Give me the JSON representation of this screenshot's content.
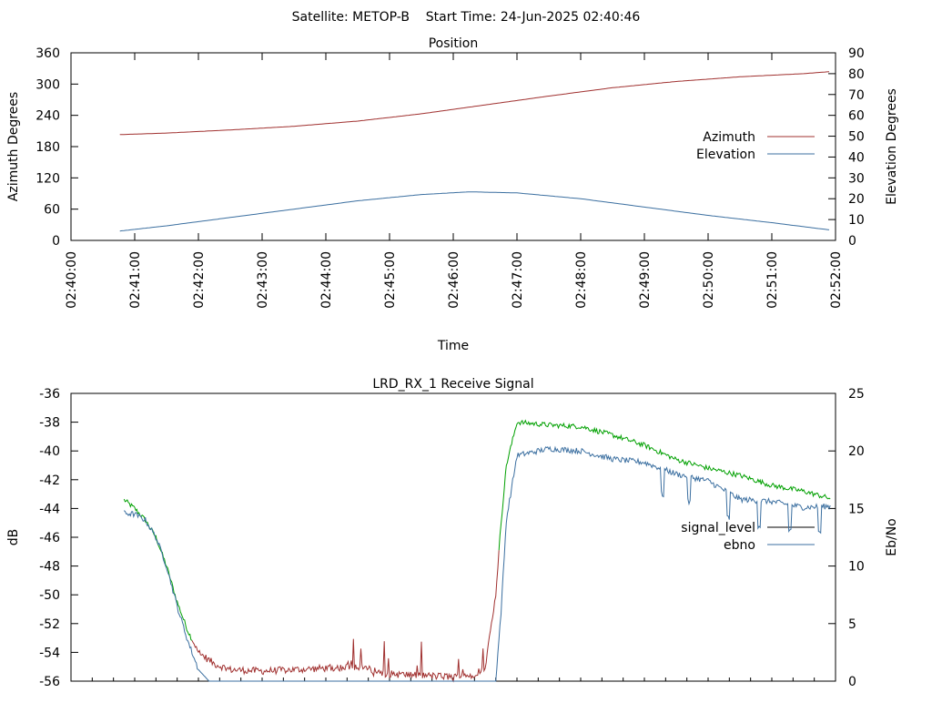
{
  "header": {
    "title": "Satellite: METOP-B    Start Time: 24-Jun-2025 02:40:46"
  },
  "colors": {
    "azimuth": "#a0302f",
    "elevation": "#3b6fa0",
    "signal_good": "#00a000",
    "signal_low": "#a0302f",
    "ebno": "#3b6fa0"
  },
  "chart_data": [
    {
      "type": "line",
      "title": "Position",
      "xlabel": "Time",
      "ylabel": "Azimuth Degrees",
      "y2label": "Elevation Degrees",
      "xlim": [
        "02:40:00",
        "02:52:00"
      ],
      "ylim": [
        0,
        360
      ],
      "y2lim": [
        0,
        90
      ],
      "x_ticks": [
        "02:40:00",
        "02:41:00",
        "02:42:00",
        "02:43:00",
        "02:44:00",
        "02:45:00",
        "02:46:00",
        "02:47:00",
        "02:48:00",
        "02:49:00",
        "02:50:00",
        "02:51:00",
        "02:52:00"
      ],
      "y_ticks": [
        0,
        60,
        120,
        180,
        240,
        300,
        360
      ],
      "y2_ticks": [
        0,
        10,
        20,
        30,
        40,
        50,
        60,
        70,
        80,
        90
      ],
      "legend_position": "right",
      "grid": false,
      "series": [
        {
          "name": "Azimuth",
          "axis": "y",
          "x": [
            "02:40:46",
            "02:41:30",
            "02:42:30",
            "02:43:30",
            "02:44:30",
            "02:45:30",
            "02:46:30",
            "02:47:30",
            "02:48:30",
            "02:49:30",
            "02:50:30",
            "02:51:30",
            "02:51:55"
          ],
          "values": [
            203,
            206,
            212,
            219,
            229,
            243,
            260,
            277,
            293,
            305,
            314,
            320,
            324
          ]
        },
        {
          "name": "Elevation",
          "axis": "y2",
          "x": [
            "02:40:46",
            "02:41:30",
            "02:42:30",
            "02:43:30",
            "02:44:30",
            "02:45:30",
            "02:46:15",
            "02:47:00",
            "02:48:00",
            "02:49:00",
            "02:50:00",
            "02:51:00",
            "02:51:55"
          ],
          "values": [
            4.5,
            7,
            11,
            15,
            19,
            22,
            23.3,
            22.8,
            20,
            16,
            12,
            8.5,
            5
          ]
        }
      ]
    },
    {
      "type": "line",
      "title": "LRD_RX_1 Receive Signal",
      "xlabel": "",
      "ylabel": "dB",
      "y2label": "Eb/No",
      "xlim": [
        "02:40:00",
        "02:52:00"
      ],
      "ylim": [
        -56,
        -36
      ],
      "y2lim": [
        0,
        25
      ],
      "y_ticks": [
        -56,
        -54,
        -52,
        -50,
        -48,
        -46,
        -44,
        -42,
        -40,
        -38,
        -36
      ],
      "y2_ticks": [
        0,
        5,
        10,
        15,
        20,
        25
      ],
      "legend_position": "right",
      "grid": false,
      "series": [
        {
          "name": "signal_level",
          "axis": "y",
          "x": [
            "02:40:50",
            "02:41:00",
            "02:41:10",
            "02:41:20",
            "02:41:30",
            "02:41:40",
            "02:41:50",
            "02:42:00",
            "02:42:15",
            "02:42:30",
            "02:43:00",
            "02:44:00",
            "02:44:30",
            "02:45:00",
            "02:45:30",
            "02:46:00",
            "02:46:20",
            "02:46:30",
            "02:46:40",
            "02:46:45",
            "02:46:50",
            "02:47:00",
            "02:47:30",
            "02:48:00",
            "02:48:30",
            "02:49:00",
            "02:49:30",
            "02:50:00",
            "02:50:30",
            "02:51:00",
            "02:51:30",
            "02:51:55"
          ],
          "values": [
            -43.4,
            -44.0,
            -44.8,
            -46.0,
            -48.0,
            -50.5,
            -52.5,
            -54.0,
            -54.8,
            -55.2,
            -55.3,
            -55.1,
            -55.0,
            -55.5,
            -55.6,
            -55.7,
            -55.5,
            -55.0,
            -50.0,
            -45.0,
            -41.0,
            -38.0,
            -38.2,
            -38.3,
            -38.9,
            -39.6,
            -40.6,
            -41.2,
            -41.7,
            -42.4,
            -42.8,
            -43.3
          ]
        },
        {
          "name": "ebno",
          "axis": "y2",
          "x": [
            "02:40:50",
            "02:41:00",
            "02:41:10",
            "02:41:20",
            "02:41:30",
            "02:41:40",
            "02:41:50",
            "02:42:00",
            "02:42:10",
            "02:46:40",
            "02:46:45",
            "02:46:50",
            "02:47:00",
            "02:47:30",
            "02:48:00",
            "02:48:30",
            "02:49:00",
            "02:49:30",
            "02:50:00",
            "02:50:30",
            "02:51:00",
            "02:51:30",
            "02:51:55"
          ],
          "values": [
            14.6,
            14.5,
            14.0,
            12.5,
            10.0,
            6.5,
            3.5,
            1.0,
            0,
            0,
            6.0,
            14.0,
            19.6,
            20.2,
            20.0,
            19.3,
            19.0,
            18.0,
            17.4,
            15.8,
            15.6,
            15.1,
            15.2
          ]
        }
      ]
    }
  ]
}
